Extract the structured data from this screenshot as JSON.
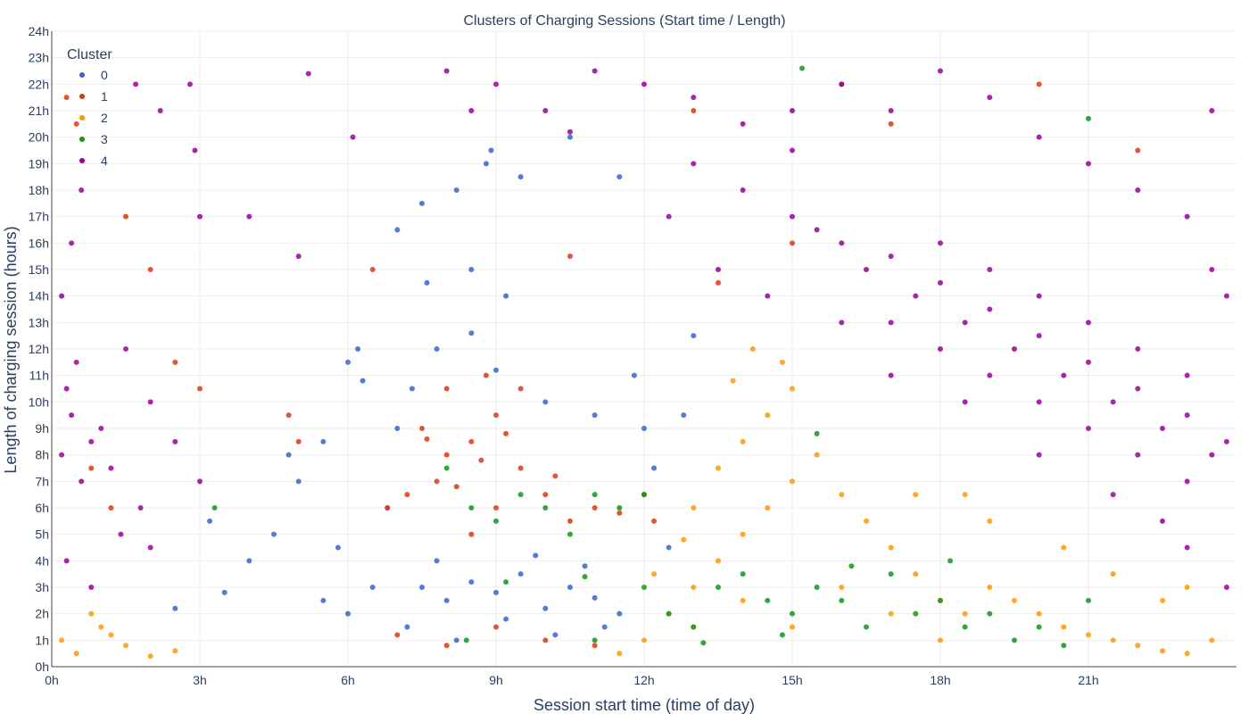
{
  "chart_data": {
    "type": "scatter",
    "title": "Clusters of Charging Sessions (Start time / Length)",
    "xlabel": "Session start time (time of day)",
    "ylabel": "Length of charging session (hours)",
    "xlim": [
      0,
      24
    ],
    "ylim": [
      0,
      24
    ],
    "x_ticks": [
      0,
      3,
      6,
      9,
      12,
      15,
      18,
      21
    ],
    "x_tick_labels": [
      "0h",
      "3h",
      "6h",
      "9h",
      "12h",
      "15h",
      "18h",
      "21h"
    ],
    "y_ticks": [
      0,
      1,
      2,
      3,
      4,
      5,
      6,
      7,
      8,
      9,
      10,
      11,
      12,
      13,
      14,
      15,
      16,
      17,
      18,
      19,
      20,
      21,
      22,
      23,
      24
    ],
    "y_tick_labels": [
      "0h",
      "1h",
      "2h",
      "3h",
      "4h",
      "5h",
      "6h",
      "7h",
      "8h",
      "9h",
      "10h",
      "11h",
      "12h",
      "13h",
      "14h",
      "15h",
      "16h",
      "17h",
      "18h",
      "19h",
      "20h",
      "21h",
      "22h",
      "23h",
      "24h"
    ],
    "grid": true,
    "legend": {
      "title": "Cluster",
      "position": "top-left",
      "entries": [
        "0",
        "1",
        "2",
        "3",
        "4"
      ]
    },
    "series": [
      {
        "name": "0",
        "color": "#3366cc",
        "points": [
          [
            7.5,
            3.0
          ],
          [
            8.0,
            2.5
          ],
          [
            8.5,
            3.2
          ],
          [
            9.0,
            2.8
          ],
          [
            9.5,
            3.5
          ],
          [
            10.0,
            2.2
          ],
          [
            10.5,
            3.0
          ],
          [
            11.0,
            2.6
          ],
          [
            11.5,
            2.0
          ],
          [
            7.2,
            1.5
          ],
          [
            8.2,
            1.0
          ],
          [
            9.2,
            1.8
          ],
          [
            10.2,
            1.2
          ],
          [
            11.2,
            1.5
          ],
          [
            7.8,
            4.0
          ],
          [
            9.8,
            4.2
          ],
          [
            10.8,
            3.8
          ],
          [
            7.0,
            9.0
          ],
          [
            7.3,
            10.5
          ],
          [
            7.8,
            12.0
          ],
          [
            8.5,
            12.6
          ],
          [
            9.0,
            11.2
          ],
          [
            10.0,
            10.0
          ],
          [
            11.0,
            9.5
          ],
          [
            12.0,
            9.0
          ],
          [
            6.0,
            11.5
          ],
          [
            6.2,
            12.0
          ],
          [
            6.3,
            10.8
          ],
          [
            6.5,
            3.0
          ],
          [
            6.0,
            2.0
          ],
          [
            5.5,
            2.5
          ],
          [
            5.8,
            4.5
          ],
          [
            6.8,
            6.0
          ],
          [
            4.5,
            5.0
          ],
          [
            4.0,
            4.0
          ],
          [
            3.5,
            2.8
          ],
          [
            2.5,
            2.2
          ],
          [
            3.2,
            5.5
          ],
          [
            4.8,
            8.0
          ],
          [
            5.0,
            7.0
          ],
          [
            5.5,
            8.5
          ],
          [
            7.5,
            17.5
          ],
          [
            8.2,
            18.0
          ],
          [
            8.8,
            19.0
          ],
          [
            8.9,
            19.5
          ],
          [
            9.5,
            18.5
          ],
          [
            10.5,
            20.0
          ],
          [
            11.5,
            18.5
          ],
          [
            7.0,
            16.5
          ],
          [
            12.5,
            4.5
          ],
          [
            12.8,
            9.5
          ],
          [
            13.0,
            12.5
          ],
          [
            12.2,
            7.5
          ],
          [
            11.8,
            11.0
          ],
          [
            9.2,
            14.0
          ],
          [
            8.5,
            15.0
          ],
          [
            7.6,
            14.5
          ]
        ]
      },
      {
        "name": "1",
        "color": "#dc3912",
        "points": [
          [
            7.5,
            9.0
          ],
          [
            8.0,
            8.0
          ],
          [
            8.5,
            8.5
          ],
          [
            9.0,
            9.5
          ],
          [
            9.5,
            7.5
          ],
          [
            8.0,
            10.5
          ],
          [
            8.8,
            11.0
          ],
          [
            7.8,
            7.0
          ],
          [
            9.0,
            6.0
          ],
          [
            10.0,
            6.5
          ],
          [
            11.0,
            6.0
          ],
          [
            12.0,
            6.5
          ],
          [
            10.5,
            5.5
          ],
          [
            8.5,
            5.0
          ],
          [
            7.2,
            6.5
          ],
          [
            9.5,
            10.5
          ],
          [
            8.2,
            6.8
          ],
          [
            8.7,
            7.8
          ],
          [
            7.6,
            8.6
          ],
          [
            9.2,
            8.8
          ],
          [
            10.2,
            7.2
          ],
          [
            11.5,
            5.8
          ],
          [
            12.2,
            5.5
          ],
          [
            6.8,
            6.0
          ],
          [
            0.3,
            21.5
          ],
          [
            0.5,
            20.5
          ],
          [
            1.5,
            17.0
          ],
          [
            2.0,
            15.0
          ],
          [
            2.5,
            11.5
          ],
          [
            3.0,
            10.5
          ],
          [
            0.8,
            7.5
          ],
          [
            1.2,
            6.0
          ],
          [
            10.5,
            15.5
          ],
          [
            6.5,
            15.0
          ],
          [
            5.0,
            8.5
          ],
          [
            4.8,
            9.5
          ],
          [
            13.5,
            14.5
          ],
          [
            15.0,
            16.0
          ],
          [
            16.0,
            22.0
          ],
          [
            20.0,
            22.0
          ],
          [
            9.0,
            1.5
          ],
          [
            8.0,
            0.8
          ],
          [
            10.0,
            1.0
          ],
          [
            11.0,
            0.8
          ],
          [
            7.0,
            1.2
          ],
          [
            13.0,
            21.0
          ],
          [
            17.0,
            20.5
          ],
          [
            22.0,
            19.5
          ]
        ]
      },
      {
        "name": "2",
        "color": "#ff9900",
        "points": [
          [
            12.0,
            1.0
          ],
          [
            12.5,
            2.0
          ],
          [
            13.0,
            3.0
          ],
          [
            13.5,
            4.0
          ],
          [
            14.0,
            5.0
          ],
          [
            14.5,
            6.0
          ],
          [
            15.0,
            7.0
          ],
          [
            15.5,
            8.0
          ],
          [
            16.0,
            6.5
          ],
          [
            16.5,
            5.5
          ],
          [
            17.0,
            4.5
          ],
          [
            17.5,
            3.5
          ],
          [
            18.0,
            2.5
          ],
          [
            18.5,
            2.0
          ],
          [
            19.0,
            3.0
          ],
          [
            19.5,
            2.5
          ],
          [
            20.0,
            2.0
          ],
          [
            20.5,
            1.5
          ],
          [
            21.0,
            1.2
          ],
          [
            21.5,
            1.0
          ],
          [
            22.0,
            0.8
          ],
          [
            22.5,
            0.6
          ],
          [
            23.0,
            0.5
          ],
          [
            23.5,
            1.0
          ],
          [
            13.0,
            6.0
          ],
          [
            13.5,
            7.5
          ],
          [
            14.0,
            8.5
          ],
          [
            14.5,
            9.5
          ],
          [
            15.0,
            10.5
          ],
          [
            14.8,
            11.5
          ],
          [
            14.2,
            12.0
          ],
          [
            13.8,
            10.8
          ],
          [
            16.0,
            3.0
          ],
          [
            17.0,
            2.0
          ],
          [
            18.0,
            1.0
          ],
          [
            15.0,
            1.5
          ],
          [
            14.0,
            2.5
          ],
          [
            13.0,
            1.5
          ],
          [
            19.0,
            5.5
          ],
          [
            18.5,
            6.5
          ],
          [
            0.2,
            1.0
          ],
          [
            0.5,
            0.5
          ],
          [
            1.0,
            1.5
          ],
          [
            1.5,
            0.8
          ],
          [
            2.0,
            0.4
          ],
          [
            0.8,
            2.0
          ],
          [
            1.2,
            1.2
          ],
          [
            2.5,
            0.6
          ],
          [
            11.5,
            0.5
          ],
          [
            12.2,
            3.5
          ],
          [
            12.8,
            4.8
          ],
          [
            20.5,
            4.5
          ],
          [
            21.5,
            3.5
          ],
          [
            22.5,
            2.5
          ],
          [
            23.0,
            3.0
          ],
          [
            17.5,
            6.5
          ]
        ]
      },
      {
        "name": "3",
        "color": "#109618",
        "points": [
          [
            8.0,
            7.5
          ],
          [
            8.5,
            6.0
          ],
          [
            9.0,
            5.5
          ],
          [
            9.5,
            6.5
          ],
          [
            10.0,
            6.0
          ],
          [
            10.5,
            5.0
          ],
          [
            11.0,
            6.5
          ],
          [
            11.5,
            6.0
          ],
          [
            12.0,
            3.0
          ],
          [
            12.5,
            2.0
          ],
          [
            13.0,
            1.5
          ],
          [
            13.5,
            3.0
          ],
          [
            14.0,
            3.5
          ],
          [
            14.5,
            2.5
          ],
          [
            15.0,
            2.0
          ],
          [
            15.5,
            3.0
          ],
          [
            16.0,
            2.5
          ],
          [
            16.5,
            1.5
          ],
          [
            17.0,
            3.5
          ],
          [
            17.5,
            2.0
          ],
          [
            18.0,
            2.5
          ],
          [
            18.5,
            1.5
          ],
          [
            19.0,
            2.0
          ],
          [
            19.5,
            1.0
          ],
          [
            20.0,
            1.5
          ],
          [
            21.0,
            2.5
          ],
          [
            15.5,
            8.8
          ],
          [
            15.2,
            22.6
          ],
          [
            21.0,
            20.7
          ],
          [
            3.3,
            6.0
          ],
          [
            11.0,
            1.0
          ],
          [
            12.0,
            6.5
          ],
          [
            9.2,
            3.2
          ],
          [
            10.8,
            3.4
          ],
          [
            8.4,
            1.0
          ],
          [
            14.8,
            1.2
          ],
          [
            16.2,
            3.8
          ],
          [
            18.2,
            4.0
          ],
          [
            20.5,
            0.8
          ],
          [
            13.2,
            0.9
          ]
        ]
      },
      {
        "name": "4",
        "color": "#990099",
        "points": [
          [
            15.0,
            17.0
          ],
          [
            16.0,
            16.0
          ],
          [
            17.0,
            15.5
          ],
          [
            18.0,
            14.5
          ],
          [
            19.0,
            13.5
          ],
          [
            20.0,
            12.5
          ],
          [
            21.0,
            11.5
          ],
          [
            22.0,
            10.5
          ],
          [
            23.0,
            9.5
          ],
          [
            23.8,
            8.5
          ],
          [
            16.5,
            15.0
          ],
          [
            17.5,
            14.0
          ],
          [
            18.5,
            13.0
          ],
          [
            19.5,
            12.0
          ],
          [
            20.5,
            11.0
          ],
          [
            21.5,
            10.0
          ],
          [
            22.5,
            9.0
          ],
          [
            23.5,
            8.0
          ],
          [
            15.5,
            16.5
          ],
          [
            18.0,
            16.0
          ],
          [
            19.0,
            15.0
          ],
          [
            20.0,
            14.0
          ],
          [
            21.0,
            13.0
          ],
          [
            22.0,
            12.0
          ],
          [
            23.0,
            11.0
          ],
          [
            17.0,
            13.0
          ],
          [
            18.0,
            12.0
          ],
          [
            19.0,
            11.0
          ],
          [
            20.0,
            10.0
          ],
          [
            21.0,
            9.0
          ],
          [
            22.0,
            8.0
          ],
          [
            23.0,
            7.0
          ],
          [
            12.0,
            22.0
          ],
          [
            13.0,
            21.5
          ],
          [
            14.0,
            20.5
          ],
          [
            15.0,
            21.0
          ],
          [
            16.0,
            22.0
          ],
          [
            17.0,
            21.0
          ],
          [
            18.0,
            22.5
          ],
          [
            19.0,
            21.5
          ],
          [
            20.0,
            20.0
          ],
          [
            21.0,
            19.0
          ],
          [
            22.0,
            18.0
          ],
          [
            23.0,
            17.0
          ],
          [
            23.5,
            15.0
          ],
          [
            13.0,
            19.0
          ],
          [
            14.0,
            18.0
          ],
          [
            15.0,
            19.5
          ],
          [
            0.2,
            8.0
          ],
          [
            0.4,
            9.5
          ],
          [
            0.6,
            7.0
          ],
          [
            0.3,
            10.5
          ],
          [
            0.8,
            8.5
          ],
          [
            1.0,
            9.0
          ],
          [
            0.5,
            11.5
          ],
          [
            1.2,
            7.5
          ],
          [
            0.2,
            14.0
          ],
          [
            0.4,
            16.0
          ],
          [
            0.6,
            18.0
          ],
          [
            1.5,
            12.0
          ],
          [
            2.0,
            10.0
          ],
          [
            2.5,
            8.5
          ],
          [
            3.0,
            7.0
          ],
          [
            1.8,
            6.0
          ],
          [
            2.8,
            22.0
          ],
          [
            2.2,
            21.0
          ],
          [
            1.7,
            22.0
          ],
          [
            2.9,
            19.5
          ],
          [
            3.0,
            17.0
          ],
          [
            4.0,
            17.0
          ],
          [
            5.0,
            15.5
          ],
          [
            5.2,
            22.4
          ],
          [
            6.1,
            20.0
          ],
          [
            8.0,
            22.5
          ],
          [
            8.5,
            21.0
          ],
          [
            9.0,
            22.0
          ],
          [
            10.0,
            21.0
          ],
          [
            10.5,
            20.2
          ],
          [
            11.0,
            22.5
          ],
          [
            12.5,
            17.0
          ],
          [
            13.5,
            15.0
          ],
          [
            14.5,
            14.0
          ],
          [
            16.0,
            13.0
          ],
          [
            17.0,
            11.0
          ],
          [
            18.5,
            10.0
          ],
          [
            20.0,
            8.0
          ],
          [
            21.5,
            6.5
          ],
          [
            22.5,
            5.5
          ],
          [
            23.0,
            4.5
          ],
          [
            23.8,
            3.0
          ],
          [
            0.3,
            4.0
          ],
          [
            0.8,
            3.0
          ],
          [
            1.4,
            5.0
          ],
          [
            2.0,
            4.5
          ],
          [
            23.8,
            14.0
          ],
          [
            23.5,
            21.0
          ]
        ]
      }
    ]
  }
}
